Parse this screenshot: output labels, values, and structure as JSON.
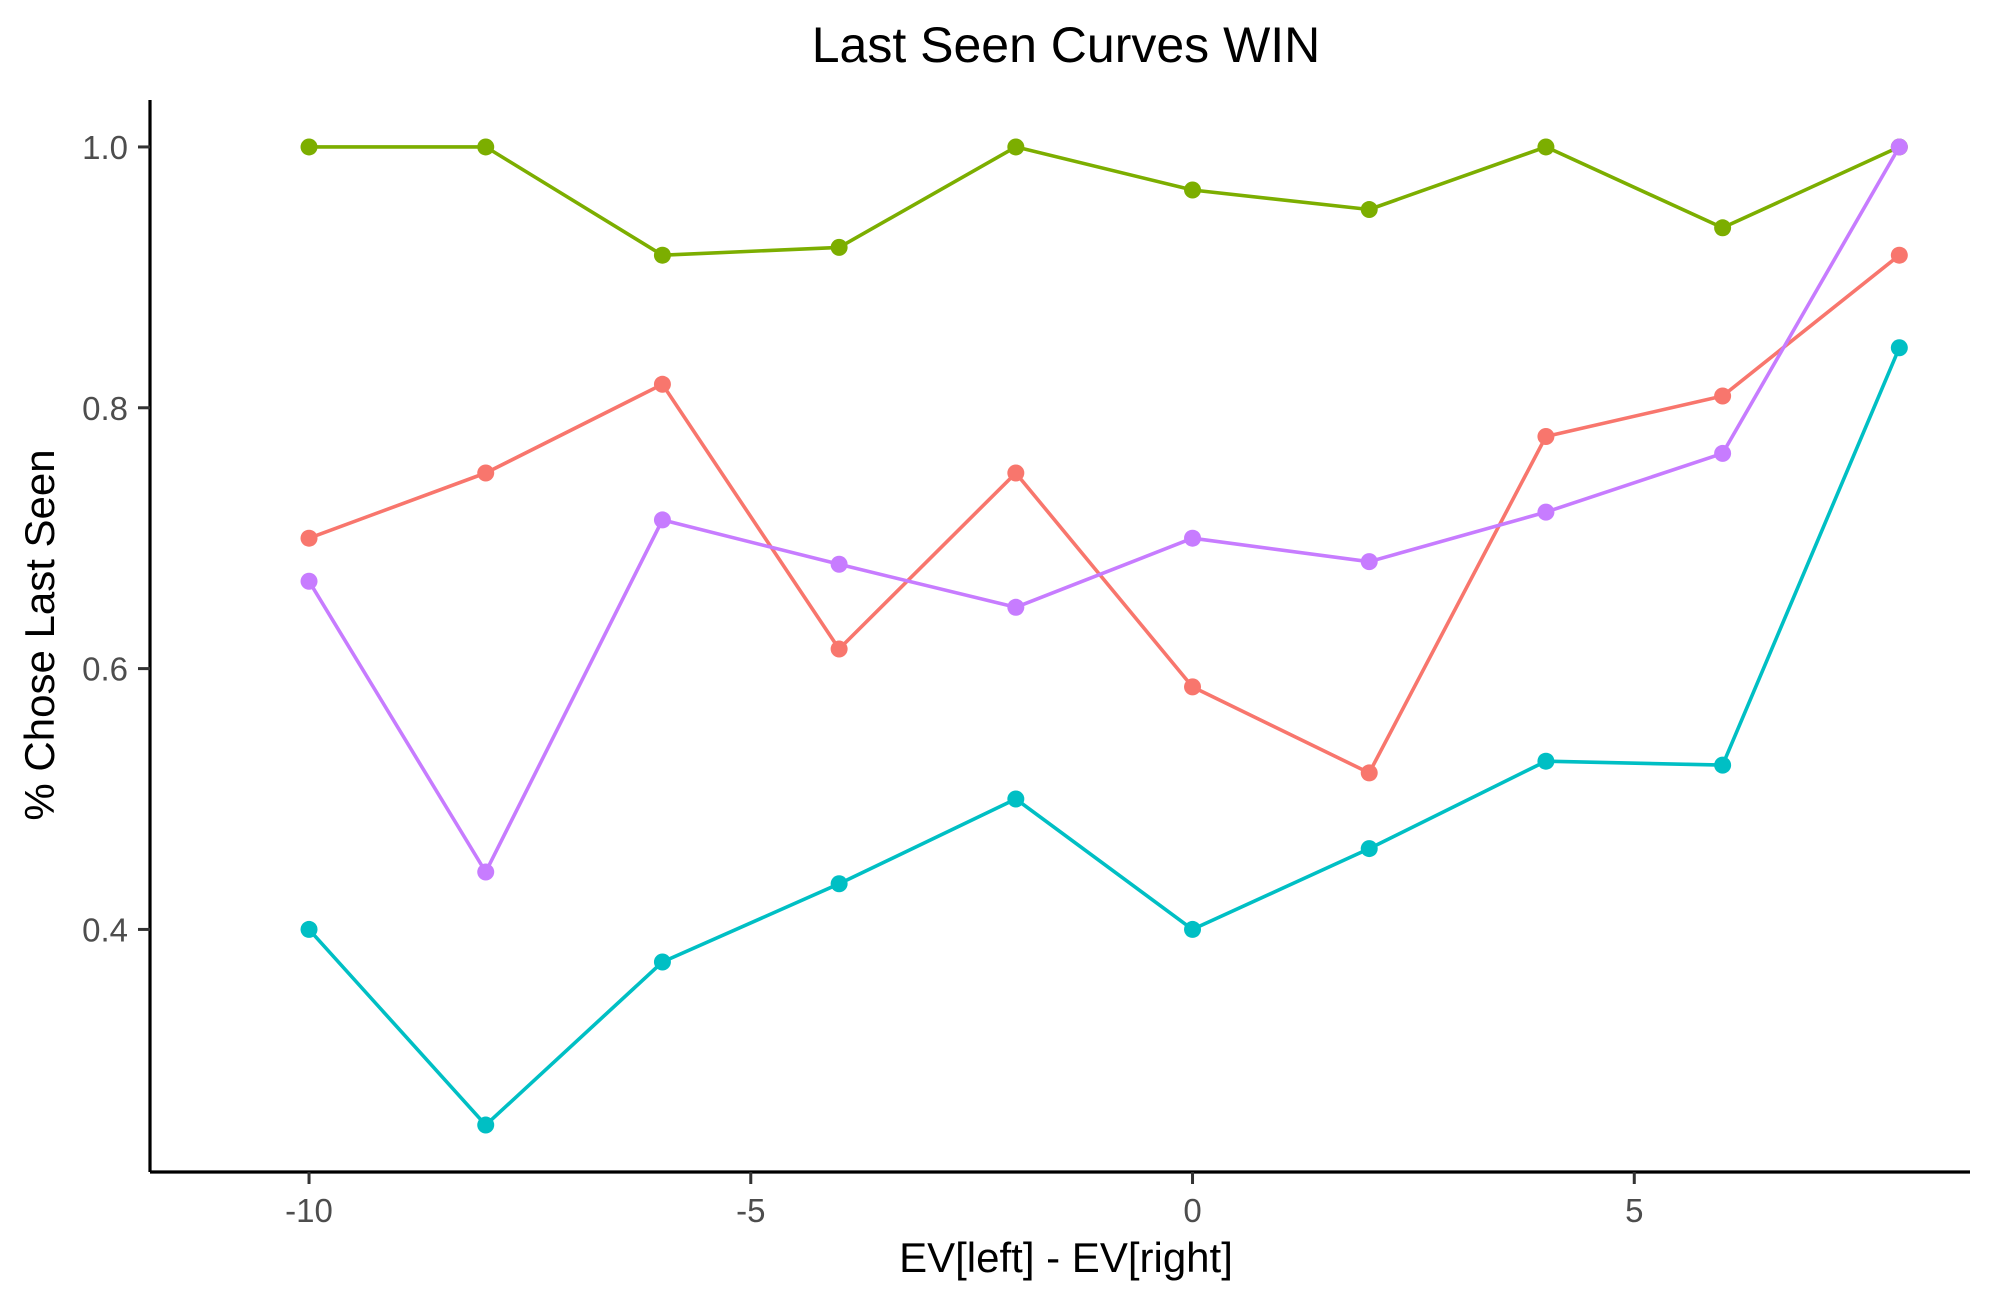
{
  "chart_data": {
    "type": "line",
    "title": "Last Seen Curves WIN",
    "xlabel": "EV[left] - EV[right]",
    "ylabel": "% Chose Last Seen",
    "xlim": [
      -11.8,
      8.8
    ],
    "ylim": [
      0.214,
      1.036
    ],
    "xticks": [
      -10,
      -5,
      0,
      5
    ],
    "xtick_labels": [
      "-10",
      "-5",
      "0",
      "5"
    ],
    "yticks": [
      0.4,
      0.6,
      0.8,
      1.0
    ],
    "ytick_labels": [
      "0.4",
      "0.6",
      "0.8",
      "1.0"
    ],
    "grid": false,
    "legend": "none",
    "x": [
      -10,
      -8,
      -6,
      -4,
      -2,
      0,
      2,
      4,
      6,
      8
    ],
    "series": [
      {
        "color": "#F8766D",
        "values": [
          0.7,
          0.75,
          0.818,
          0.615,
          0.75,
          0.586,
          0.52,
          0.778,
          0.809,
          0.917
        ]
      },
      {
        "color": "#7CAE00",
        "values": [
          1.0,
          1.0,
          0.917,
          0.923,
          1.0,
          0.967,
          0.952,
          1.0,
          0.938,
          1.0
        ]
      },
      {
        "color": "#00BFC4",
        "values": [
          0.4,
          0.25,
          0.375,
          0.435,
          0.5,
          0.4,
          0.462,
          0.529,
          0.526,
          0.846
        ]
      },
      {
        "color": "#C77CFF",
        "values": [
          0.667,
          0.444,
          0.714,
          0.68,
          0.647,
          0.7,
          0.682,
          0.72,
          0.765,
          1.0
        ]
      }
    ]
  }
}
